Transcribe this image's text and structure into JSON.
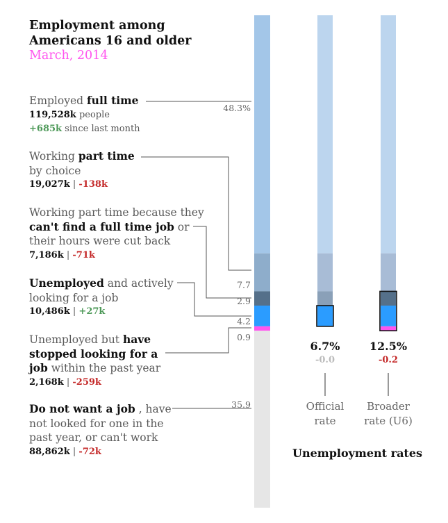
{
  "header": {
    "title_line1": "Employment among",
    "title_line2": "Americans 16 and older",
    "subtitle": "March, 2014"
  },
  "labels": {
    "full_time": {
      "pre": "Employed ",
      "bold": "full time",
      "count": "119,528k",
      "count_suffix": " people",
      "change": "+685k",
      "change_suffix": " since last month"
    },
    "part_choice": {
      "pre": "Working ",
      "bold": "part time",
      "line2": "by choice",
      "count": "19,027k",
      "sep": " | ",
      "change": "-138k"
    },
    "part_econ": {
      "line1": "Working part time because they",
      "bold": "can't find a full time job",
      "post": " or",
      "line3": "their hours were cut back",
      "count": "7,186k",
      "sep": " | ",
      "change": "-71k"
    },
    "unemployed": {
      "bold": "Unemployed",
      "post": "  and actively",
      "line2": "looking for a job",
      "count": "10,486k",
      "sep": " | ",
      "change": "+27k"
    },
    "stopped": {
      "pre": "Unemployed but ",
      "bold1": "have",
      "bold2": "stopped looking for a",
      "bold3": "job",
      "post": " within the past year",
      "count": "2,168k",
      "sep": " | ",
      "change": "-259k"
    },
    "no_job": {
      "bold": "Do not want a job",
      "post": " , have",
      "line2": "not looked for one in the",
      "line3": "past year, or can't work",
      "count": "88,862k",
      "sep": " | ",
      "change": "-72k"
    }
  },
  "rates": {
    "official": {
      "value": "6.7%",
      "change": "-0.0",
      "label1": "Official",
      "label2": "rate"
    },
    "broader": {
      "value": "12.5%",
      "change": "-0.2",
      "label1": "Broader",
      "label2": "rate (U6)"
    },
    "footer": "Unemployment rates"
  },
  "chart_data": {
    "type": "bar",
    "orientation": "vertical stacked",
    "unit": "percent of population 16+",
    "categories": [
      "Employed full time",
      "Working part time by choice",
      "Working part time for economic reasons",
      "Unemployed and actively looking",
      "Stopped looking within the past year",
      "Do not want a job"
    ],
    "values": [
      48.3,
      7.7,
      2.9,
      4.2,
      0.9,
      35.9
    ],
    "value_labels": [
      "48.3%",
      "7.7",
      "2.9",
      "4.2",
      "0.9",
      "35.9"
    ],
    "colors": [
      "#a3c6e8",
      "#8eadcb",
      "#55708a",
      "#2b9cff",
      "#ff55ee",
      "#e6e6e6"
    ],
    "rate_bars": [
      {
        "name": "Official rate",
        "value": 6.7,
        "change": -0.0,
        "components": [
          "Unemployed and actively looking"
        ]
      },
      {
        "name": "Broader rate (U6)",
        "value": 12.5,
        "change": -0.2,
        "components": [
          "Working part time for economic reasons",
          "Unemployed and actively looking",
          "Stopped looking within the past year"
        ]
      }
    ]
  }
}
